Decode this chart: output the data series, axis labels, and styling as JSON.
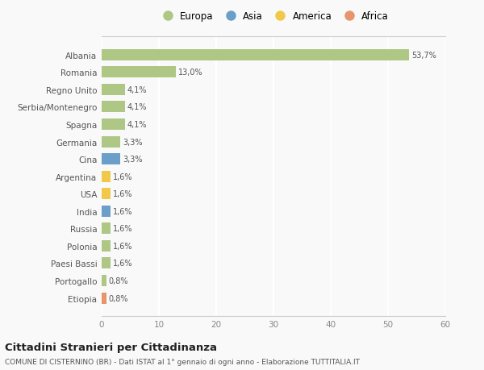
{
  "categories": [
    "Albania",
    "Romania",
    "Regno Unito",
    "Serbia/Montenegro",
    "Spagna",
    "Germania",
    "Cina",
    "Argentina",
    "USA",
    "India",
    "Russia",
    "Polonia",
    "Paesi Bassi",
    "Portogallo",
    "Etiopia"
  ],
  "values": [
    53.7,
    13.0,
    4.1,
    4.1,
    4.1,
    3.3,
    3.3,
    1.6,
    1.6,
    1.6,
    1.6,
    1.6,
    1.6,
    0.8,
    0.8
  ],
  "labels": [
    "53,7%",
    "13,0%",
    "4,1%",
    "4,1%",
    "4,1%",
    "3,3%",
    "3,3%",
    "1,6%",
    "1,6%",
    "1,6%",
    "1,6%",
    "1,6%",
    "1,6%",
    "0,8%",
    "0,8%"
  ],
  "continents": [
    "Europa",
    "Europa",
    "Europa",
    "Europa",
    "Europa",
    "Europa",
    "Asia",
    "America",
    "America",
    "Asia",
    "Europa",
    "Europa",
    "Europa",
    "Europa",
    "Africa"
  ],
  "continent_colors": {
    "Europa": "#aec784",
    "Asia": "#6b9ec8",
    "America": "#f2c84b",
    "Africa": "#e8956d"
  },
  "legend_order": [
    "Europa",
    "Asia",
    "America",
    "Africa"
  ],
  "title": "Cittadini Stranieri per Cittadinanza",
  "subtitle": "COMUNE DI CISTERNINO (BR) - Dati ISTAT al 1° gennaio di ogni anno - Elaborazione TUTTITALIA.IT",
  "xlim": [
    0,
    60
  ],
  "xticks": [
    0,
    10,
    20,
    30,
    40,
    50,
    60
  ],
  "background_color": "#f9f9f9",
  "bar_height": 0.65,
  "grid_color": "#ffffff",
  "axis_color": "#cccccc"
}
